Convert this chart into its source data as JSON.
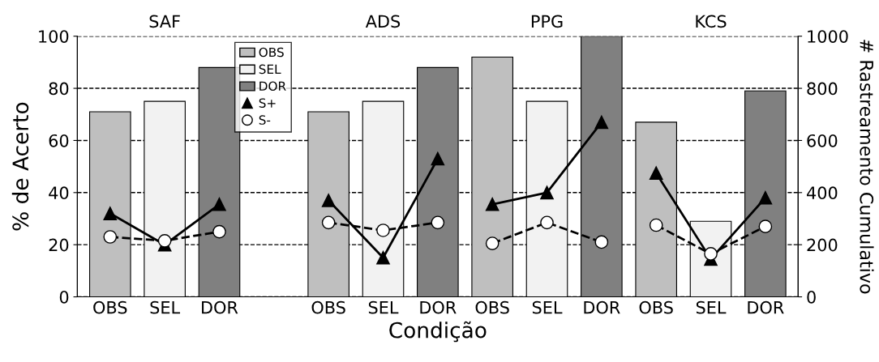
{
  "chart_data": {
    "type": "bar",
    "xlabel": "Condição",
    "ylabel": "% de Acerto",
    "y2label": "# Rastreamento Cumulativo",
    "categories": [
      "OBS",
      "SEL",
      "DOR",
      null,
      "OBS",
      "SEL",
      "DOR",
      "OBS",
      "SEL",
      "DOR",
      "OBS",
      "SEL",
      "DOR"
    ],
    "annotations": [
      "SAF",
      "ADS",
      "PPG",
      "KCS"
    ],
    "series": [
      {
        "name": "OBS",
        "type": "bar",
        "color": "#bfbfbf",
        "values": [
          71,
          null,
          null,
          null,
          71,
          null,
          null,
          92,
          null,
          null,
          67,
          null,
          null
        ]
      },
      {
        "name": "SEL",
        "type": "bar",
        "color": "#f2f2f2",
        "values": [
          null,
          75,
          null,
          null,
          null,
          75,
          null,
          null,
          75,
          null,
          null,
          29,
          null
        ]
      },
      {
        "name": "DOR",
        "type": "bar",
        "color": "#808080",
        "values": [
          null,
          null,
          88,
          null,
          null,
          null,
          88,
          null,
          null,
          100,
          null,
          null,
          79
        ]
      },
      {
        "name": "S+",
        "type": "line",
        "axis": "y2",
        "color": "#000000",
        "marker": "triangle",
        "line_style": "solid",
        "values": [
          320,
          200,
          355,
          null,
          null,
          null,
          null,
          null,
          null,
          null,
          null,
          null,
          null
        ]
      },
      {
        "type": "line",
        "axis": "y2",
        "color": "#000000",
        "marker": "triangle",
        "line_style": "solid",
        "values": [
          null,
          null,
          null,
          null,
          370,
          150,
          530,
          null,
          null,
          null,
          null,
          null,
          null
        ]
      },
      {
        "type": "line",
        "axis": "y2",
        "color": "#000000",
        "marker": "triangle",
        "line_style": "solid",
        "values": [
          null,
          null,
          null,
          null,
          null,
          null,
          null,
          355,
          400,
          670,
          null,
          null,
          null
        ]
      },
      {
        "type": "line",
        "axis": "y2",
        "color": "#000000",
        "marker": "triangle",
        "line_style": "solid",
        "values": [
          null,
          null,
          null,
          null,
          null,
          null,
          null,
          null,
          null,
          null,
          475,
          145,
          380
        ]
      },
      {
        "name": "S-",
        "type": "line",
        "axis": "y2",
        "color": "#000000",
        "marker": "circle",
        "line_style": "dashed",
        "values": [
          230,
          215,
          250,
          null,
          null,
          null,
          null,
          null,
          null,
          null,
          null,
          null,
          null
        ]
      },
      {
        "type": "line",
        "axis": "y2",
        "color": "#000000",
        "marker": "circle",
        "line_style": "dashed",
        "values": [
          null,
          null,
          null,
          null,
          285,
          255,
          285,
          null,
          null,
          null,
          null,
          null,
          null
        ]
      },
      {
        "type": "line",
        "axis": "y2",
        "color": "#000000",
        "marker": "circle",
        "line_style": "dashed",
        "values": [
          null,
          null,
          null,
          null,
          null,
          null,
          null,
          205,
          285,
          210,
          null,
          null,
          null
        ]
      },
      {
        "type": "line",
        "axis": "y2",
        "color": "#000000",
        "marker": "circle",
        "line_style": "dashed",
        "values": [
          null,
          null,
          null,
          null,
          null,
          null,
          null,
          null,
          null,
          null,
          275,
          165,
          270
        ]
      }
    ],
    "ylim": [
      0,
      100
    ],
    "yticks": [
      0,
      20,
      40,
      60,
      80,
      100
    ],
    "y2lim": [
      0,
      1000
    ],
    "y2ticks": [
      0,
      200,
      400,
      600,
      800,
      1000
    ],
    "grid": "y",
    "legend": "top left"
  }
}
